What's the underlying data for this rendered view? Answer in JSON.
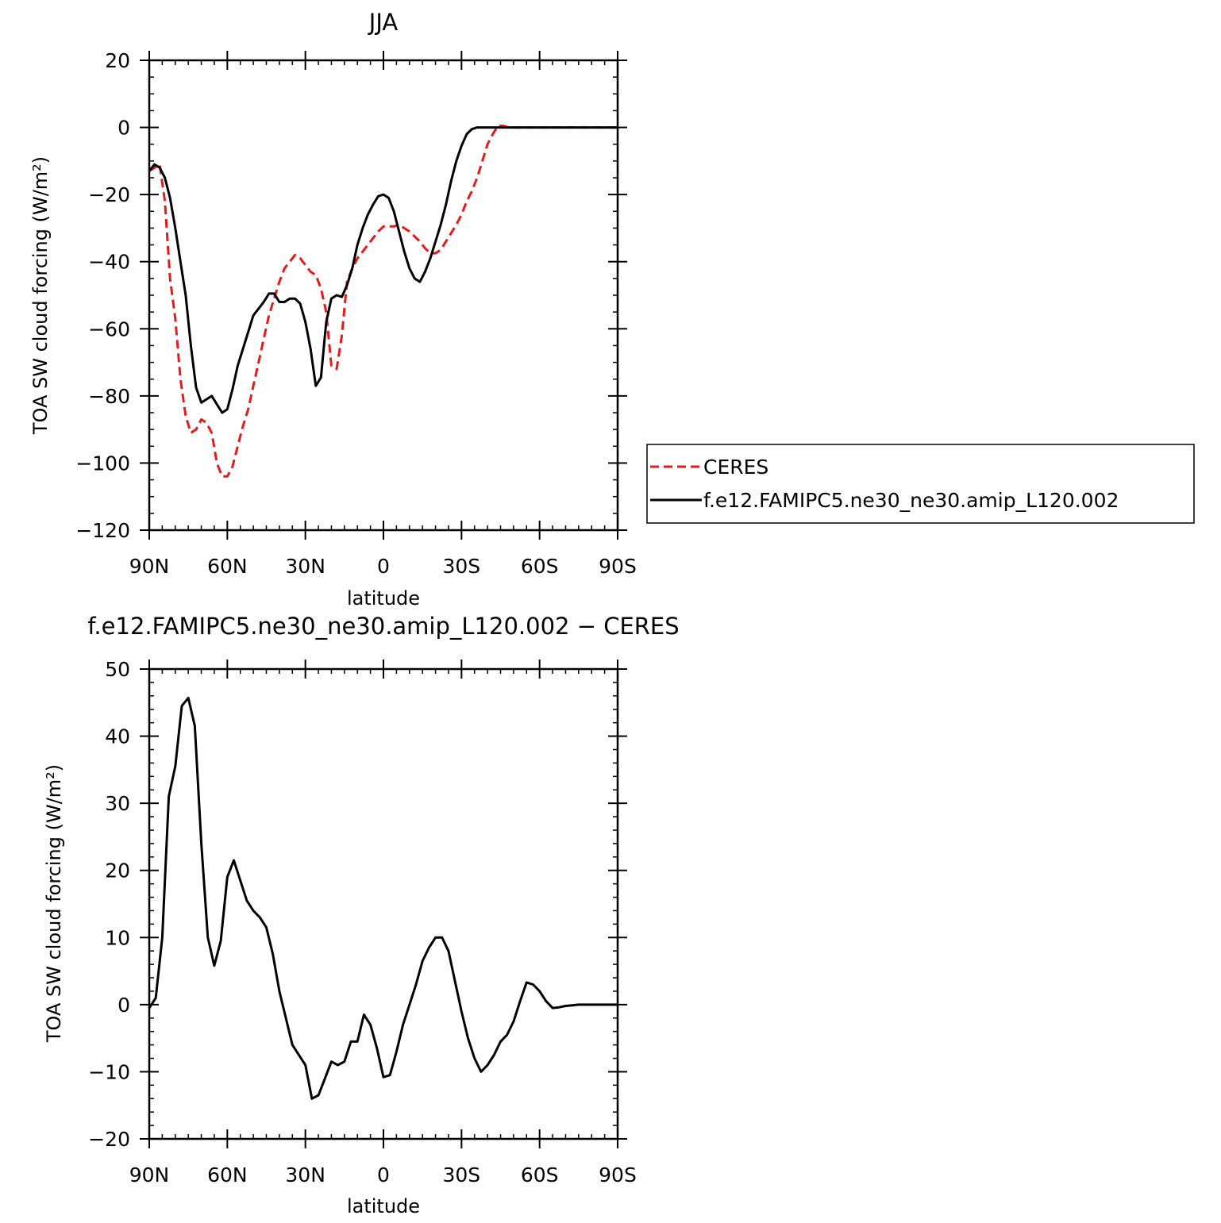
{
  "chart_data": [
    {
      "type": "line",
      "title": "JJA",
      "xlabel": "latitude",
      "ylabel": "TOA SW cloud forcing (W/m²)",
      "xlim": [
        90,
        -90
      ],
      "ylim": [
        -120,
        20
      ],
      "xticks": [
        90,
        60,
        30,
        0,
        -30,
        -60,
        -90
      ],
      "xtick_labels": [
        "90N",
        "60N",
        "30N",
        "0",
        "30S",
        "60S",
        "90S"
      ],
      "yticks": [
        20,
        0,
        -20,
        -40,
        -60,
        -80,
        -100,
        -120
      ],
      "ytick_labels": [
        "20",
        "0",
        "−20",
        "−40",
        "−60",
        "−80",
        "−100",
        "−120"
      ],
      "grid": false,
      "legend": "right",
      "series": [
        {
          "name": "CERES",
          "color": "#e41a1c",
          "dash": "dashed",
          "x": [
            90,
            88,
            86,
            84,
            82,
            80,
            78,
            76,
            74,
            72,
            70,
            68,
            66,
            64,
            62,
            60,
            58,
            56,
            54,
            52,
            50,
            48,
            46,
            44,
            42,
            40,
            38,
            36,
            34,
            32,
            30,
            28,
            26,
            24,
            22,
            20,
            18,
            16,
            14,
            12,
            10,
            8,
            6,
            4,
            2,
            0,
            -2,
            -4,
            -6,
            -8,
            -10,
            -12,
            -14,
            -16,
            -18,
            -20,
            -22,
            -24,
            -26,
            -28,
            -30,
            -32,
            -34,
            -36,
            -38,
            -40,
            -42,
            -44,
            -46,
            -48,
            -50,
            -52,
            -54,
            -56,
            -58,
            -60,
            -62,
            -64,
            -66,
            -68,
            -70,
            -72,
            -74,
            -76,
            -78,
            -80,
            -82,
            -84,
            -86,
            -88,
            -90
          ],
          "values": [
            -13,
            -12,
            -11,
            -22,
            -45,
            -57,
            -75,
            -86,
            -91,
            -90,
            -87,
            -88,
            -91,
            -100,
            -104,
            -104,
            -101,
            -95,
            -89,
            -84,
            -77,
            -70,
            -63,
            -56,
            -51,
            -46,
            -42,
            -40,
            -38,
            -39,
            -41,
            -43,
            -44,
            -48,
            -55,
            -71,
            -72,
            -62,
            -46,
            -42,
            -39,
            -37,
            -35,
            -33,
            -31,
            -29.5,
            -29.5,
            -29.5,
            -29,
            -30,
            -31,
            -32.5,
            -34,
            -36,
            -37.5,
            -37.5,
            -36.5,
            -34,
            -31.5,
            -29,
            -26,
            -22,
            -19,
            -15,
            -10,
            -5,
            -2,
            0.5,
            0.5,
            0,
            0,
            0,
            0,
            0,
            0,
            0,
            0,
            0,
            0,
            0,
            0,
            0,
            0,
            0,
            0,
            0,
            0,
            0,
            0,
            0,
            0
          ]
        },
        {
          "name": "f.e12.FAMIPC5.ne30_ne30.amip_L120.002",
          "color": "#000000",
          "dash": "solid",
          "x": [
            90,
            88,
            86,
            84,
            82,
            80,
            78,
            76,
            74,
            72,
            70,
            68,
            66,
            64,
            62,
            60,
            58,
            56,
            54,
            52,
            50,
            48,
            46,
            44,
            42,
            40,
            38,
            36,
            34,
            32,
            30,
            28,
            26,
            24,
            22,
            20,
            18,
            16,
            14,
            12,
            10,
            8,
            6,
            4,
            2,
            0,
            -2,
            -4,
            -6,
            -8,
            -10,
            -12,
            -14,
            -16,
            -18,
            -20,
            -22,
            -24,
            -26,
            -28,
            -30,
            -32,
            -34,
            -36,
            -38,
            -40,
            -42,
            -44,
            -46,
            -48,
            -50,
            -52,
            -54,
            -56,
            -58,
            -60,
            -62,
            -64,
            -66,
            -68,
            -70,
            -72,
            -74,
            -76,
            -78,
            -80,
            -82,
            -84,
            -86,
            -88,
            -90
          ],
          "values": [
            -13,
            -11,
            -12,
            -15,
            -21,
            -30,
            -40,
            -50,
            -65,
            -77.5,
            -82,
            -81,
            -80,
            -82.5,
            -85,
            -84,
            -78,
            -71,
            -66,
            -61,
            -56,
            -54,
            -52,
            -49.5,
            -49.5,
            -52,
            -52,
            -51,
            -51,
            -52.5,
            -58,
            -66,
            -77,
            -74.5,
            -58,
            -51,
            -50,
            -50.5,
            -47,
            -42,
            -35,
            -30,
            -26,
            -23,
            -20.5,
            -20,
            -21,
            -25,
            -31,
            -37,
            -42,
            -45,
            -46,
            -43,
            -39,
            -34,
            -29,
            -23,
            -16,
            -10,
            -5.5,
            -2,
            -0.5,
            0,
            0,
            0,
            0,
            0,
            0,
            0,
            0,
            0,
            0,
            0,
            0,
            0,
            0,
            0,
            0,
            0,
            0,
            0,
            0,
            0,
            0,
            0,
            0,
            0,
            0,
            0,
            0
          ]
        }
      ]
    },
    {
      "type": "line",
      "title": "f.e12.FAMIPC5.ne30_ne30.amip_L120.002 − CERES",
      "xlabel": "latitude",
      "ylabel": "TOA SW cloud forcing (W/m²)",
      "xlim": [
        90,
        -90
      ],
      "ylim": [
        -20,
        50
      ],
      "xticks": [
        90,
        60,
        30,
        0,
        -30,
        -60,
        -90
      ],
      "xtick_labels": [
        "90N",
        "60N",
        "30N",
        "0",
        "30S",
        "60S",
        "90S"
      ],
      "yticks": [
        50,
        40,
        30,
        20,
        10,
        0,
        -10,
        -20
      ],
      "ytick_labels": [
        "50",
        "40",
        "30",
        "20",
        "10",
        "0",
        "−10",
        "−20"
      ],
      "grid": false,
      "series": [
        {
          "color": "#000000",
          "dash": "solid",
          "x": [
            90,
            87.5,
            85,
            82.5,
            80,
            77.5,
            75,
            72.5,
            70,
            67.5,
            65,
            62.5,
            60,
            57.5,
            55,
            52.5,
            50,
            47.5,
            45,
            42.5,
            40,
            37.5,
            35,
            32.5,
            30,
            27.5,
            25,
            22.5,
            20,
            17.5,
            15,
            12.5,
            10,
            7.5,
            5,
            2.5,
            0,
            -2.5,
            -5,
            -7.5,
            -10,
            -12.5,
            -15,
            -17.5,
            -20,
            -22.5,
            -25,
            -27.5,
            -30,
            -32.5,
            -35,
            -37.5,
            -40,
            -42.5,
            -45,
            -47.5,
            -50,
            -52.5,
            -55,
            -57.5,
            -60,
            -62.5,
            -65,
            -67.5,
            -70,
            -72.5,
            -75,
            -77.5,
            -80,
            -82.5,
            -85,
            -87.5,
            -90
          ],
          "values": [
            -0.5,
            1,
            10,
            31,
            35.5,
            44.5,
            45.7,
            41.5,
            24,
            10,
            5.8,
            9.5,
            19,
            21.5,
            18.5,
            15.5,
            14,
            13,
            11.5,
            7.5,
            2,
            -2,
            -6,
            -7.5,
            -9,
            -14,
            -13.5,
            -11,
            -8.5,
            -9,
            -8.5,
            -5.5,
            -5.5,
            -1.5,
            -3,
            -6.5,
            -10.8,
            -10.5,
            -7,
            -3,
            0,
            3,
            6.5,
            8.5,
            10,
            10,
            8,
            3.5,
            -1,
            -5,
            -8,
            -10,
            -9,
            -7.5,
            -5.5,
            -4.5,
            -2.5,
            0.5,
            3.3,
            3,
            2,
            0.5,
            -0.5,
            -0.4,
            -0.2,
            -0.1,
            0,
            0,
            0,
            0,
            0,
            0,
            0
          ]
        }
      ]
    }
  ]
}
